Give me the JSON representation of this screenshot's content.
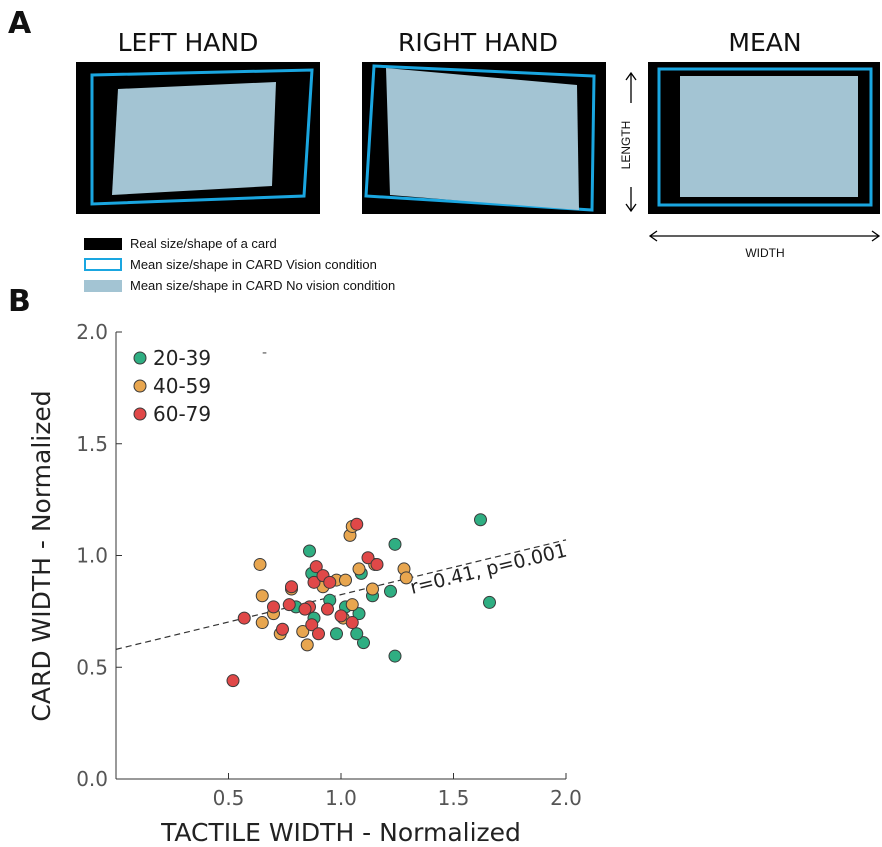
{
  "panel_a": {
    "letter": "A",
    "titles": [
      "LEFT HAND",
      "RIGHT HAND",
      "MEAN"
    ],
    "length_label": "LENGTH",
    "width_label": "WIDTH",
    "legend": [
      {
        "label": "Real size/shape of a card",
        "style": "black-fill"
      },
      {
        "label": "Mean size/shape in CARD Vision condition",
        "style": "blue-outline"
      },
      {
        "label": "Mean size/shape in CARD No vision condition",
        "style": "lightblue-fill"
      }
    ],
    "colors": {
      "real": "#000000",
      "vision": "#1aa6e0",
      "novision": "#a3c4d3"
    }
  },
  "panel_b": {
    "letter": "B"
  },
  "chart_data": {
    "type": "scatter",
    "xlabel": "TACTILE WIDTH - Normalized",
    "ylabel": "CARD WIDTH - Normalized",
    "xlim": [
      0.0,
      2.0
    ],
    "ylim": [
      0.0,
      2.0
    ],
    "xticks": [
      "0.5",
      "1.0",
      "1.5",
      "2.0"
    ],
    "yticks": [
      "0.0",
      "0.5",
      "1.0",
      "1.5",
      "2.0"
    ],
    "annotation": "r=0.41, p=0.001",
    "legend_position": "top-left",
    "trendline": {
      "style": "dashed",
      "x": [
        0.0,
        2.0
      ],
      "y": [
        0.58,
        1.07
      ]
    },
    "series": [
      {
        "name": "20-39",
        "color": "#2fae82",
        "points": [
          [
            0.86,
            1.02
          ],
          [
            1.24,
            1.05
          ],
          [
            1.62,
            1.16
          ],
          [
            1.66,
            0.79
          ],
          [
            1.24,
            0.55
          ],
          [
            1.1,
            0.61
          ],
          [
            1.07,
            0.65
          ],
          [
            0.98,
            0.65
          ],
          [
            1.08,
            0.74
          ],
          [
            1.02,
            0.77
          ],
          [
            0.95,
            0.8
          ],
          [
            1.22,
            0.84
          ],
          [
            1.14,
            0.82
          ],
          [
            0.88,
            0.72
          ],
          [
            0.8,
            0.77
          ],
          [
            0.87,
            0.92
          ],
          [
            1.09,
            0.92
          ]
        ]
      },
      {
        "name": "40-59",
        "color": "#e8a64f",
        "points": [
          [
            0.64,
            0.96
          ],
          [
            0.65,
            0.7
          ],
          [
            0.65,
            0.82
          ],
          [
            0.73,
            0.65
          ],
          [
            0.83,
            0.66
          ],
          [
            0.85,
            0.6
          ],
          [
            0.92,
            0.86
          ],
          [
            0.98,
            0.89
          ],
          [
            1.02,
            0.89
          ],
          [
            1.04,
            1.09
          ],
          [
            1.05,
            1.13
          ],
          [
            1.08,
            0.94
          ],
          [
            1.15,
            0.96
          ],
          [
            1.28,
            0.94
          ],
          [
            1.29,
            0.9
          ],
          [
            1.14,
            0.85
          ],
          [
            1.05,
            0.78
          ],
          [
            1.01,
            0.72
          ],
          [
            0.78,
            0.85
          ],
          [
            0.7,
            0.74
          ]
        ]
      },
      {
        "name": "60-79",
        "color": "#e04848",
        "points": [
          [
            0.52,
            0.44
          ],
          [
            0.57,
            0.72
          ],
          [
            0.7,
            0.77
          ],
          [
            0.74,
            0.67
          ],
          [
            0.77,
            0.78
          ],
          [
            0.78,
            0.86
          ],
          [
            0.86,
            0.77
          ],
          [
            0.87,
            0.69
          ],
          [
            0.88,
            0.88
          ],
          [
            0.9,
            0.65
          ],
          [
            0.89,
            0.95
          ],
          [
            0.92,
            0.91
          ],
          [
            0.95,
            0.88
          ],
          [
            1.0,
            0.73
          ],
          [
            1.05,
            0.7
          ],
          [
            1.07,
            1.14
          ],
          [
            1.12,
            0.99
          ],
          [
            1.16,
            0.96
          ],
          [
            0.94,
            0.76
          ],
          [
            0.84,
            0.76
          ]
        ]
      }
    ]
  }
}
